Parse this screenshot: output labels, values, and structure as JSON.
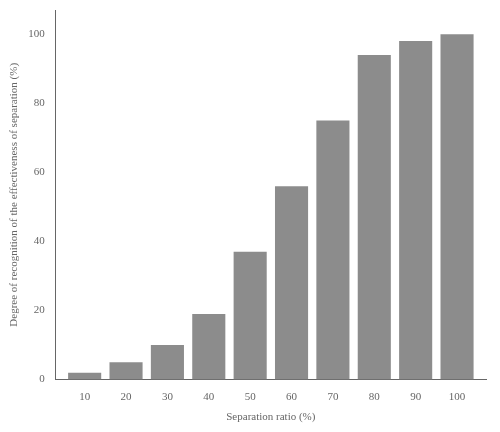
{
  "chart_data": {
    "type": "bar",
    "x": [
      10,
      20,
      30,
      40,
      50,
      60,
      70,
      80,
      90,
      100
    ],
    "values": [
      2,
      5,
      10,
      19,
      37,
      56,
      75,
      94,
      98,
      100
    ],
    "color": "#8c8c8c",
    "xlabel": "Separation ratio (%)",
    "ylabel": "Degree of recognition of the effectiveness of separation (%)",
    "xlim": [
      3,
      107
    ],
    "ylim": [
      0,
      107
    ],
    "xticks": [
      10,
      20,
      30,
      40,
      50,
      60,
      70,
      80,
      90,
      100
    ],
    "yticks": [
      0,
      20,
      40,
      60,
      80,
      100
    ],
    "grid": false
  }
}
